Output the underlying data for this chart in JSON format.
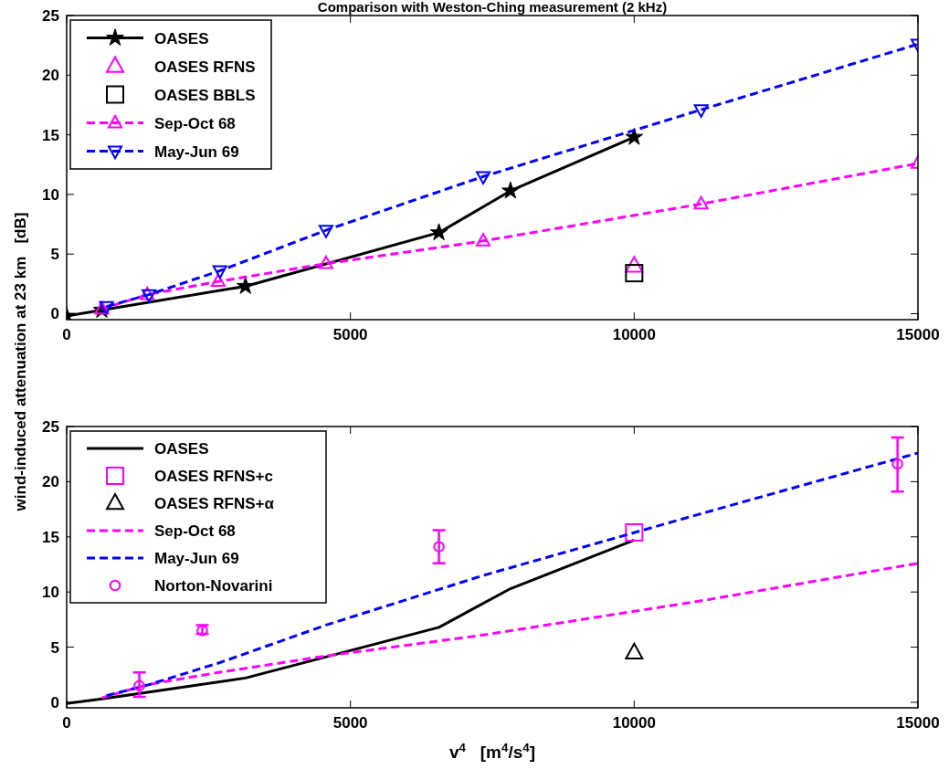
{
  "chart_data": [
    {
      "type": "line",
      "title": "Comparison with Weston-Ching measurement (2 kHz)",
      "ylabel": "wind-induced attenuation at 23 km   [dB]",
      "xlim": [
        0,
        15000
      ],
      "ylim": [
        -0.5,
        25
      ],
      "xticks": [
        0,
        5000,
        10000,
        15000
      ],
      "yticks": [
        0,
        5,
        10,
        15,
        20,
        25
      ],
      "grid": false,
      "legend": "top left",
      "series": [
        {
          "name": "OASES",
          "color": "#000000",
          "marker": "star",
          "line_style": "solid",
          "x": [
            0,
            620,
            3150,
            6560,
            7820,
            10000
          ],
          "values": [
            -0.2,
            0.3,
            2.3,
            6.8,
            10.3,
            14.8
          ]
        },
        {
          "name": "OASES RFNS",
          "color": "#ff00ff",
          "type": "scatter",
          "marker": "triangle",
          "x": [
            10000
          ],
          "values": [
            4.0
          ]
        },
        {
          "name": "OASES BBLS",
          "color": "#000000",
          "type": "scatter",
          "marker": "square",
          "x": [
            10000
          ],
          "values": [
            3.4
          ]
        },
        {
          "name": "Sep-Oct 68",
          "color": "#ff00ff",
          "marker": "triangle",
          "line_style": "dashed",
          "x": [
            620,
            1420,
            2670,
            4570,
            7340,
            11180,
            15000
          ],
          "values": [
            0.4,
            1.6,
            2.7,
            4.2,
            6.1,
            9.2,
            12.6
          ]
        },
        {
          "name": "May-Jun 69",
          "color": "#0000ff",
          "marker": "triangle-down",
          "line_style": "dashed",
          "x": [
            700,
            1450,
            2700,
            4570,
            7340,
            11180,
            15000
          ],
          "values": [
            0.6,
            1.6,
            3.6,
            7.0,
            11.5,
            17.1,
            22.6
          ]
        }
      ]
    },
    {
      "type": "line",
      "xlabel": "v$^{4}$   [m$^{4}$/s$^{4}$]",
      "xlim": [
        0,
        15000
      ],
      "ylim": [
        -0.5,
        25
      ],
      "xticks": [
        0,
        5000,
        10000,
        15000
      ],
      "yticks": [
        0,
        5,
        10,
        15,
        20,
        25
      ],
      "grid": false,
      "legend": "top left",
      "series": [
        {
          "name": "OASES",
          "color": "#000000",
          "marker": "none",
          "line_style": "solid",
          "x": [
            0,
            620,
            3150,
            6560,
            7820,
            10000
          ],
          "values": [
            -0.1,
            0.3,
            2.2,
            6.8,
            10.3,
            14.7
          ]
        },
        {
          "name": "OASES RFNS+c",
          "color": "#ff00ff",
          "type": "scatter",
          "marker": "square",
          "x": [
            10000
          ],
          "values": [
            15.4
          ]
        },
        {
          "name": "OASES RFNS+α",
          "color": "#000000",
          "type": "scatter",
          "marker": "triangle",
          "x": [
            10000
          ],
          "values": [
            4.5
          ]
        },
        {
          "name": "Sep-Oct 68",
          "color": "#ff00ff",
          "marker": "none",
          "line_style": "dashed",
          "x": [
            620,
            1420,
            2670,
            4570,
            7340,
            11180,
            15000
          ],
          "values": [
            0.4,
            1.6,
            2.7,
            4.2,
            6.1,
            9.2,
            12.6
          ]
        },
        {
          "name": "May-Jun 69",
          "color": "#0000ff",
          "marker": "none",
          "line_style": "dashed",
          "x": [
            700,
            1450,
            2700,
            4570,
            7340,
            11180,
            15000
          ],
          "values": [
            0.6,
            1.6,
            3.6,
            7.0,
            11.5,
            17.1,
            22.6
          ]
        },
        {
          "name": "Norton-Novarini",
          "color": "#ff00ff",
          "type": "scatter",
          "marker": "circle",
          "x": [
            1280,
            2390,
            6560,
            14640
          ],
          "values": [
            1.5,
            6.5,
            14.1,
            21.6
          ],
          "errors": [
            [
              0.5,
              2.7
            ],
            [
              6.2,
              7.0
            ],
            [
              12.6,
              15.6
            ],
            [
              19.1,
              24.0
            ]
          ]
        }
      ]
    }
  ]
}
